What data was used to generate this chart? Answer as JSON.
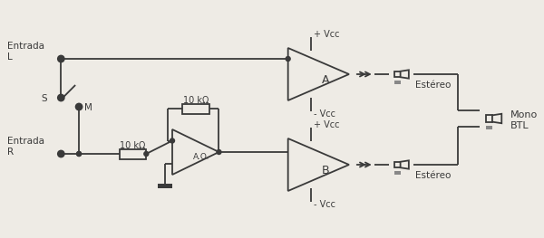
{
  "fig_width": 6.0,
  "fig_height": 2.63,
  "dpi": 100,
  "bg_color": "#eeebe5",
  "line_color": "#3a3a3a",
  "line_width": 1.3,
  "labels": {
    "entrada_L": "Entrada\nL",
    "entrada_R": "Entrada\nR",
    "S": "S",
    "M": "M",
    "resistor_top": "10 kΩ",
    "resistor_bot": "10 kΩ",
    "ao_label": "A.O.",
    "amp_A": "A",
    "amp_B": "B",
    "vcc_top_A": "+ Vcc",
    "vcc_bot_A": "- Vcc",
    "vcc_top_B": "+ Vcc",
    "vcc_bot_B": "- Vcc",
    "estereo_top": "Estéreo",
    "estereo_bot": "Estéreo",
    "mono_btl": "Mono\nBTL",
    "plus_sign": "+",
    "minus_sign": "-"
  }
}
